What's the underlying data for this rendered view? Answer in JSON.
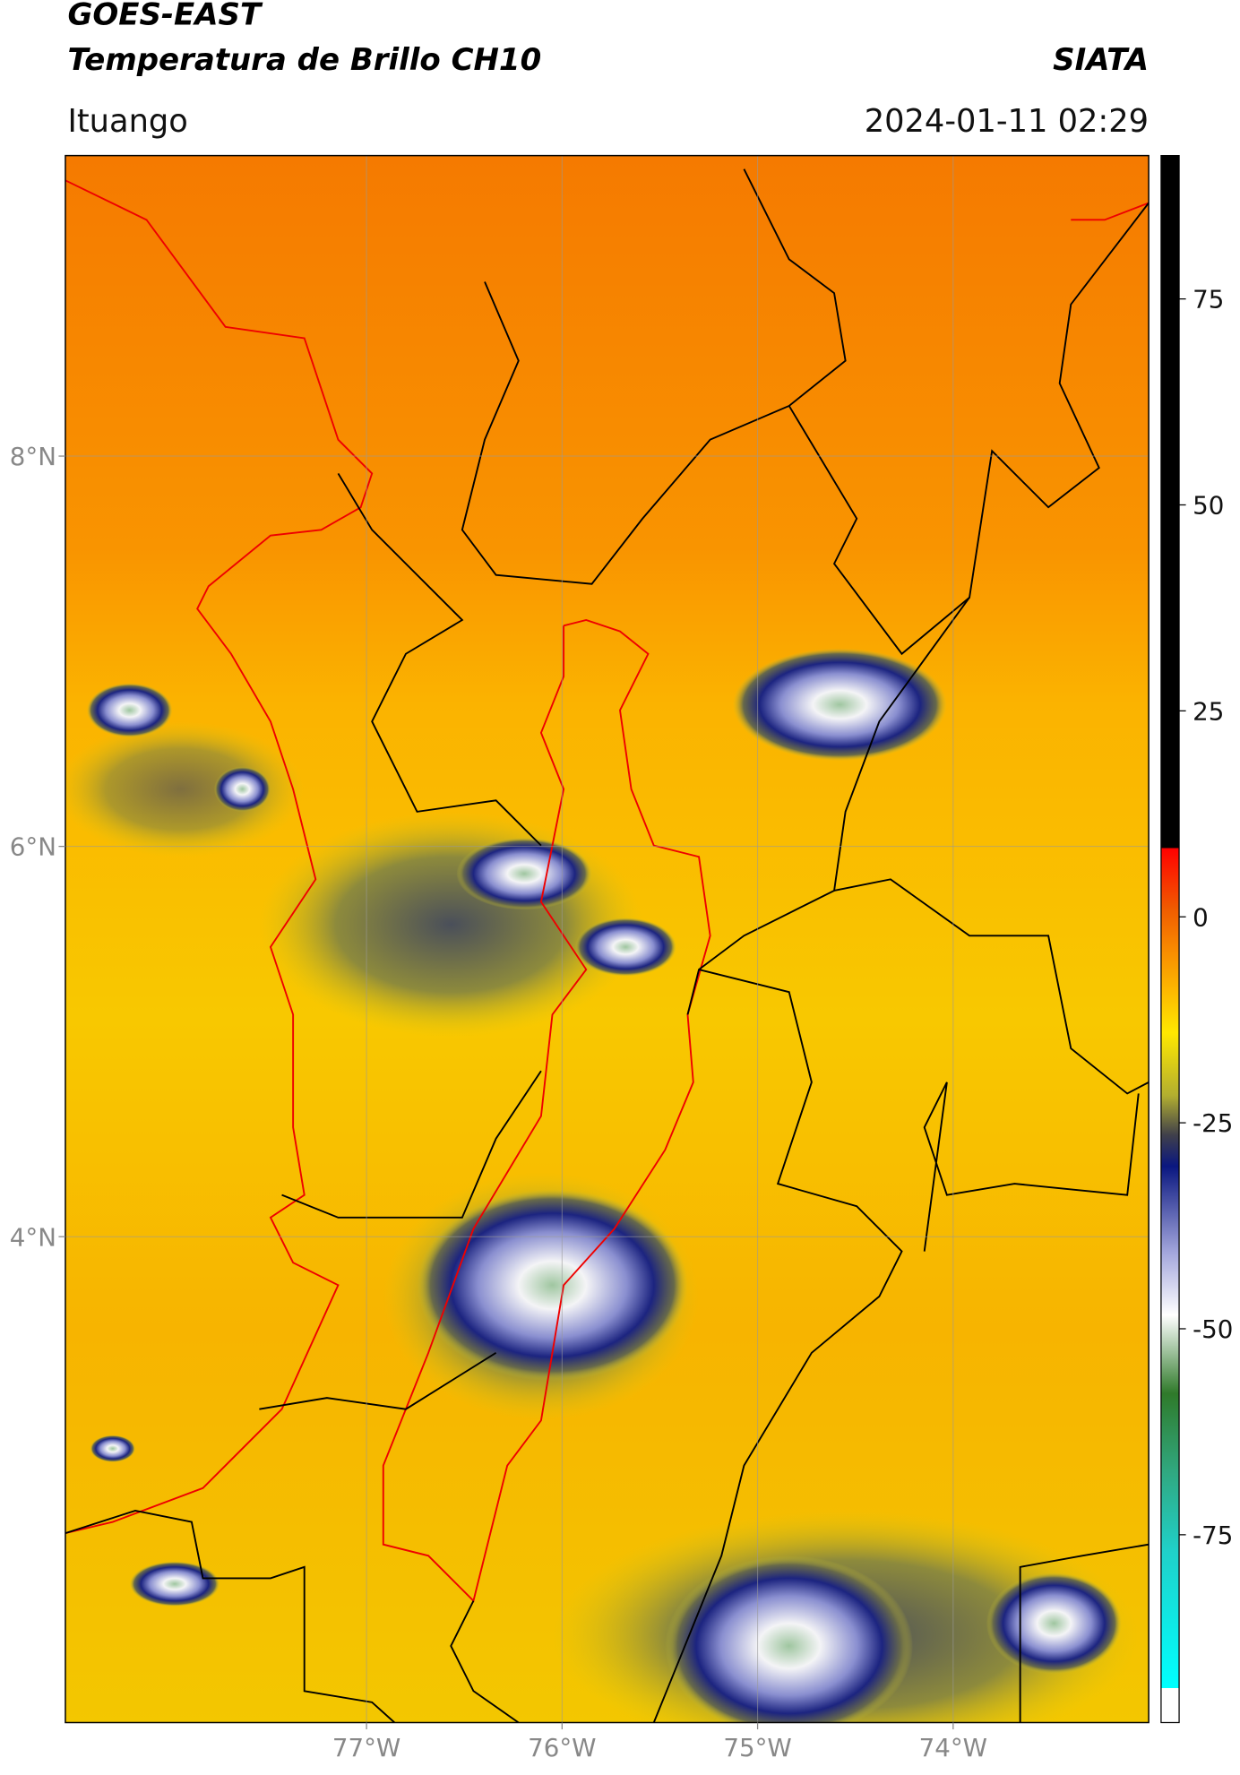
{
  "header": {
    "title": "GOES-EAST",
    "subtitle": "Temperatura de Brillo CH10",
    "agency": "SIATA",
    "location": "Ituango",
    "datetime": "2024-01-11 02:29"
  },
  "map": {
    "lon_range": [
      -78.54,
      -73.0
    ],
    "lat_range": [
      1.51,
      9.54
    ],
    "lon_ticks": [
      {
        "value": -77,
        "label": "77°W"
      },
      {
        "value": -76,
        "label": "76°W"
      },
      {
        "value": -75,
        "label": "75°W"
      },
      {
        "value": -74,
        "label": "74°W"
      }
    ],
    "lat_ticks": [
      {
        "value": 8,
        "label": "8°N"
      },
      {
        "value": 6,
        "label": "6°N"
      },
      {
        "value": 4,
        "label": "4°N"
      }
    ]
  },
  "colorbar": {
    "range": [
      -97.8,
      92.4
    ],
    "ticks": [
      75,
      50,
      25,
      0,
      -25,
      -50,
      -75
    ]
  }
}
